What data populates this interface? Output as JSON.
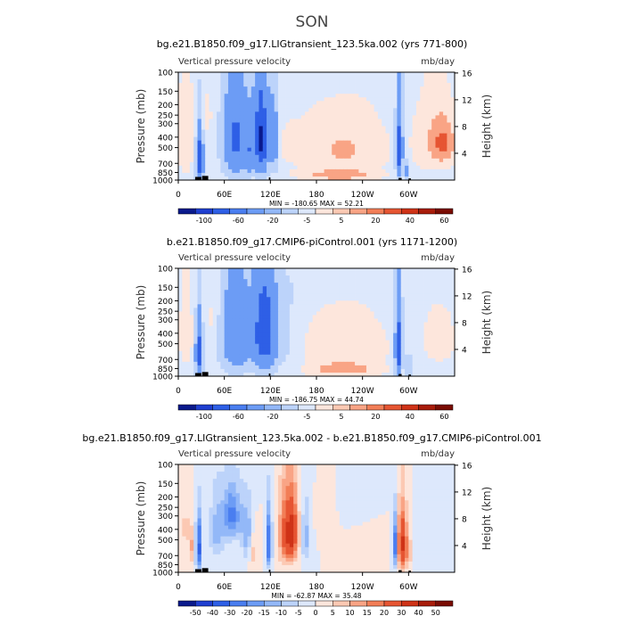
{
  "figure": {
    "title": "SON",
    "colorbar_label": ""
  },
  "chart_data": [
    {
      "type": "heatmap",
      "title": "bg.e21.B1850.f09_g17.LIGtransient_123.5ka.002 (yrs 771-800)",
      "left_subtitle": "Vertical pressure velocity",
      "right_subtitle": "mb/day",
      "ylabel": "Pressure (mb)",
      "ylabel_right": "Height (km)",
      "x_ticks": [
        "0",
        "60E",
        "120E",
        "180",
        "120W",
        "60W"
      ],
      "x_tick_lon": [
        0,
        60,
        120,
        180,
        240,
        300
      ],
      "y_ticks": [
        "100",
        "150",
        "200",
        "250",
        "300",
        "400",
        "500",
        "700",
        "850",
        "1000"
      ],
      "y_tick_p": [
        100,
        150,
        200,
        250,
        300,
        400,
        500,
        700,
        850,
        1000
      ],
      "right_ticks": [
        "4",
        "8",
        "12",
        "16"
      ],
      "right_tick_km": [
        4,
        8,
        12,
        16
      ],
      "xlim": [
        0,
        360
      ],
      "ylim": [
        1000,
        100
      ],
      "min_max": "MIN = -180.65   MAX =  52.21",
      "colorbar_labels": [
        "-100",
        "-60",
        "-20",
        "-5",
        "5",
        "20",
        "40",
        "60"
      ],
      "colorbar_colors": [
        "#0a1a8c",
        "#1f3fd0",
        "#2e5fe6",
        "#4a7ef0",
        "#6c9cf5",
        "#93b8f8",
        "#bcd3fa",
        "#dde8fc",
        "#fde6dc",
        "#fcc9b3",
        "#f9a485",
        "#f27e57",
        "#e65532",
        "#cf3317",
        "#a81c0a",
        "#7a0c03"
      ],
      "blobs": [
        {
          "lon": 10,
          "p": 420,
          "rlon": 9,
          "rp": 380,
          "v": 18
        },
        {
          "lon": 28,
          "p": 650,
          "rlon": 4,
          "rp": 330,
          "v": -95
        },
        {
          "lon": 35,
          "p": 250,
          "rlon": 10,
          "rp": 120,
          "v": 10
        },
        {
          "lon": 75,
          "p": 430,
          "rlon": 15,
          "rp": 360,
          "v": -70
        },
        {
          "lon": 108,
          "p": 420,
          "rlon": 9,
          "rp": 350,
          "v": -110
        },
        {
          "lon": 92,
          "p": 560,
          "rlon": 5,
          "rp": 280,
          "v": -40
        },
        {
          "lon": 125,
          "p": 430,
          "rlon": 4,
          "rp": 330,
          "v": -45
        },
        {
          "lon": 140,
          "p": 450,
          "rlon": 22,
          "rp": 380,
          "v": 4
        },
        {
          "lon": 215,
          "p": 520,
          "rlon": 50,
          "rp": 330,
          "v": 22
        },
        {
          "lon": 210,
          "p": 900,
          "rlon": 45,
          "rp": 90,
          "v": 30
        },
        {
          "lon": 180,
          "p": 130,
          "rlon": 60,
          "rp": 40,
          "v": -4
        },
        {
          "lon": 288,
          "p": 520,
          "rlon": 4,
          "rp": 360,
          "v": -90
        },
        {
          "lon": 298,
          "p": 820,
          "rlon": 3,
          "rp": 160,
          "v": -30
        },
        {
          "lon": 345,
          "p": 450,
          "rlon": 15,
          "rp": 200,
          "v": 38
        },
        {
          "lon": 330,
          "p": 450,
          "rlon": 25,
          "rp": 350,
          "v": 14
        }
      ]
    },
    {
      "type": "heatmap",
      "title": "b.e21.B1850.f09_g17.CMIP6-piControl.001 (yrs 1171-1200)",
      "left_subtitle": "Vertical pressure velocity",
      "right_subtitle": "mb/day",
      "ylabel": "Pressure (mb)",
      "ylabel_right": "Height (km)",
      "x_ticks": [
        "0",
        "60E",
        "120E",
        "180",
        "120W",
        "60W"
      ],
      "x_tick_lon": [
        0,
        60,
        120,
        180,
        240,
        300
      ],
      "y_ticks": [
        "100",
        "150",
        "200",
        "250",
        "300",
        "400",
        "500",
        "700",
        "850",
        "1000"
      ],
      "y_tick_p": [
        100,
        150,
        200,
        250,
        300,
        400,
        500,
        700,
        850,
        1000
      ],
      "right_ticks": [
        "4",
        "8",
        "12",
        "16"
      ],
      "right_tick_km": [
        4,
        8,
        12,
        16
      ],
      "xlim": [
        0,
        360
      ],
      "ylim": [
        1000,
        100
      ],
      "min_max": "MIN = -186.75   MAX =  44.74",
      "colorbar_labels": [
        "-100",
        "-60",
        "-20",
        "-5",
        "5",
        "20",
        "40",
        "60"
      ],
      "colorbar_colors": [
        "#0a1a8c",
        "#1f3fd0",
        "#2e5fe6",
        "#4a7ef0",
        "#6c9cf5",
        "#93b8f8",
        "#bcd3fa",
        "#dde8fc",
        "#fde6dc",
        "#fcc9b3",
        "#f9a485",
        "#f27e57",
        "#e65532",
        "#cf3317",
        "#a81c0a",
        "#7a0c03"
      ],
      "blobs": [
        {
          "lon": 10,
          "p": 420,
          "rlon": 9,
          "rp": 380,
          "v": 12
        },
        {
          "lon": 27,
          "p": 620,
          "rlon": 4,
          "rp": 340,
          "v": -85
        },
        {
          "lon": 45,
          "p": 300,
          "rlon": 8,
          "rp": 150,
          "v": 8
        },
        {
          "lon": 75,
          "p": 420,
          "rlon": 17,
          "rp": 380,
          "v": -55
        },
        {
          "lon": 112,
          "p": 400,
          "rlon": 14,
          "rp": 360,
          "v": -95
        },
        {
          "lon": 140,
          "p": 460,
          "rlon": 22,
          "rp": 400,
          "v": -8
        },
        {
          "lon": 215,
          "p": 560,
          "rlon": 50,
          "rp": 340,
          "v": 20
        },
        {
          "lon": 215,
          "p": 880,
          "rlon": 40,
          "rp": 110,
          "v": 26
        },
        {
          "lon": 185,
          "p": 160,
          "rlon": 70,
          "rp": 60,
          "v": -3
        },
        {
          "lon": 287,
          "p": 540,
          "rlon": 4,
          "rp": 360,
          "v": -95
        },
        {
          "lon": 300,
          "p": 800,
          "rlon": 3,
          "rp": 180,
          "v": -30
        },
        {
          "lon": 340,
          "p": 460,
          "rlon": 20,
          "rp": 250,
          "v": 14
        }
      ]
    },
    {
      "type": "heatmap",
      "title": "bg.e21.B1850.f09_g17.LIGtransient_123.5ka.002 - b.e21.B1850.f09_g17.CMIP6-piControl.001",
      "left_subtitle": "Vertical pressure velocity",
      "right_subtitle": "mb/day",
      "ylabel": "Pressure (mb)",
      "ylabel_right": "Height (km)",
      "x_ticks": [
        "0",
        "60E",
        "120E",
        "180",
        "120W",
        "60W"
      ],
      "x_tick_lon": [
        0,
        60,
        120,
        180,
        240,
        300
      ],
      "y_ticks": [
        "100",
        "150",
        "200",
        "250",
        "300",
        "400",
        "500",
        "700",
        "850",
        "1000"
      ],
      "y_tick_p": [
        100,
        150,
        200,
        250,
        300,
        400,
        500,
        700,
        850,
        1000
      ],
      "right_ticks": [
        "4",
        "8",
        "12",
        "16"
      ],
      "right_tick_km": [
        4,
        8,
        12,
        16
      ],
      "xlim": [
        0,
        360
      ],
      "ylim": [
        1000,
        100
      ],
      "min_max": "MIN =  -62.87   MAX =  35.48",
      "colorbar_labels": [
        "-50",
        "-40",
        "-30",
        "-20",
        "-15",
        "-10",
        "-5",
        "0",
        "5",
        "10",
        "15",
        "20",
        "30",
        "40",
        "50"
      ],
      "colorbar_colors": [
        "#0a1a8c",
        "#1f3fd0",
        "#2e5fe6",
        "#4a7ef0",
        "#6c9cf5",
        "#93b8f8",
        "#bcd3fa",
        "#dde8fc",
        "#fde6dc",
        "#fcc9b3",
        "#f9a485",
        "#f27e57",
        "#e65532",
        "#cf3317",
        "#a81c0a",
        "#7a0c03"
      ],
      "blobs": [
        {
          "lon": 10,
          "p": 400,
          "rlon": 8,
          "rp": 250,
          "v": 6
        },
        {
          "lon": 26,
          "p": 600,
          "rlon": 3,
          "rp": 330,
          "v": -40
        },
        {
          "lon": 18,
          "p": 600,
          "rlon": 3,
          "rp": 200,
          "v": 10
        },
        {
          "lon": 70,
          "p": 300,
          "rlon": 12,
          "rp": 180,
          "v": -22
        },
        {
          "lon": 50,
          "p": 420,
          "rlon": 10,
          "rp": 300,
          "v": -12
        },
        {
          "lon": 90,
          "p": 450,
          "rlon": 8,
          "rp": 280,
          "v": -14
        },
        {
          "lon": 98,
          "p": 620,
          "rlon": 6,
          "rp": 250,
          "v": 10
        },
        {
          "lon": 118,
          "p": 540,
          "rlon": 4,
          "rp": 320,
          "v": -28
        },
        {
          "lon": 138,
          "p": 450,
          "rlon": 8,
          "rp": 350,
          "v": 18
        },
        {
          "lon": 148,
          "p": 430,
          "rlon": 8,
          "rp": 300,
          "v": 32
        },
        {
          "lon": 166,
          "p": 470,
          "rlon": 6,
          "rp": 300,
          "v": -12
        },
        {
          "lon": 195,
          "p": 300,
          "rlon": 12,
          "rp": 120,
          "v": 5
        },
        {
          "lon": 250,
          "p": 600,
          "rlon": 25,
          "rp": 220,
          "v": 5
        },
        {
          "lon": 230,
          "p": 250,
          "rlon": 25,
          "rp": 100,
          "v": -4
        },
        {
          "lon": 282,
          "p": 560,
          "rlon": 3,
          "rp": 300,
          "v": -28
        },
        {
          "lon": 292,
          "p": 550,
          "rlon": 6,
          "rp": 330,
          "v": 32
        },
        {
          "lon": 300,
          "p": 650,
          "rlon": 3,
          "rp": 200,
          "v": 12
        },
        {
          "lon": 340,
          "p": 500,
          "rlon": 20,
          "rp": 300,
          "v": -4
        }
      ]
    }
  ]
}
